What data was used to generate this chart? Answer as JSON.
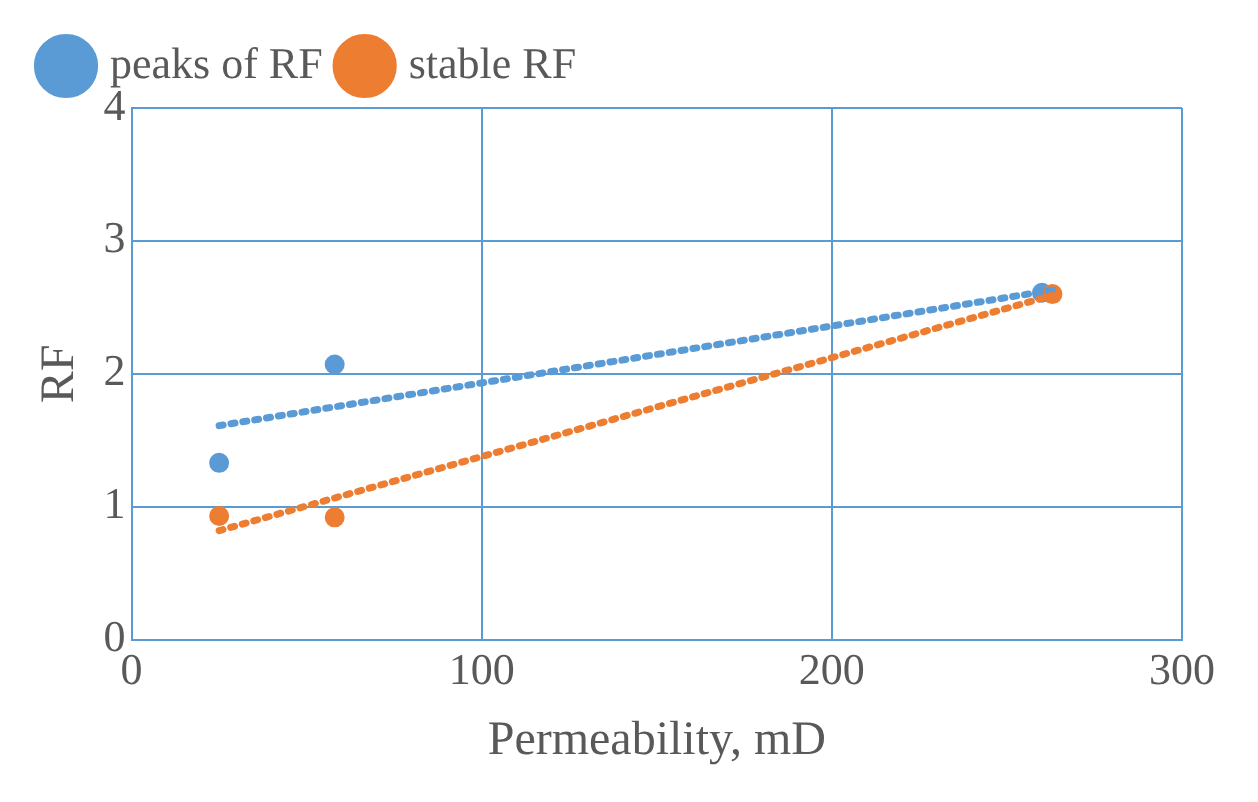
{
  "chart_data": {
    "type": "scatter",
    "xlabel": "Permeability, mD",
    "ylabel": "RF",
    "xlim": [
      0,
      300
    ],
    "xticks": [
      0,
      100,
      200,
      300
    ],
    "ylim": [
      0,
      4
    ],
    "yticks": [
      0,
      1,
      2,
      3,
      4
    ],
    "grid": true,
    "legend": "top left",
    "marker": "circle",
    "series": [
      {
        "name": "peaks of RF",
        "color": "#5b9bd5",
        "x": [
          25,
          58,
          260
        ],
        "values": [
          1.33,
          2.07,
          2.61
        ]
      },
      {
        "name": "stable RF",
        "color": "#ed7d31",
        "x": [
          25,
          58,
          263
        ],
        "values": [
          0.93,
          0.92,
          2.6
        ]
      },
      {
        "type": "line",
        "color": "#5b9bd5",
        "line_style": "dotted",
        "marker": "none",
        "x": [
          25,
          263
        ],
        "values": [
          1.61,
          2.63
        ]
      },
      {
        "type": "line",
        "color": "#ed7d31",
        "line_style": "dotted",
        "marker": "none",
        "x": [
          25,
          263
        ],
        "values": [
          0.82,
          2.59
        ]
      }
    ]
  }
}
